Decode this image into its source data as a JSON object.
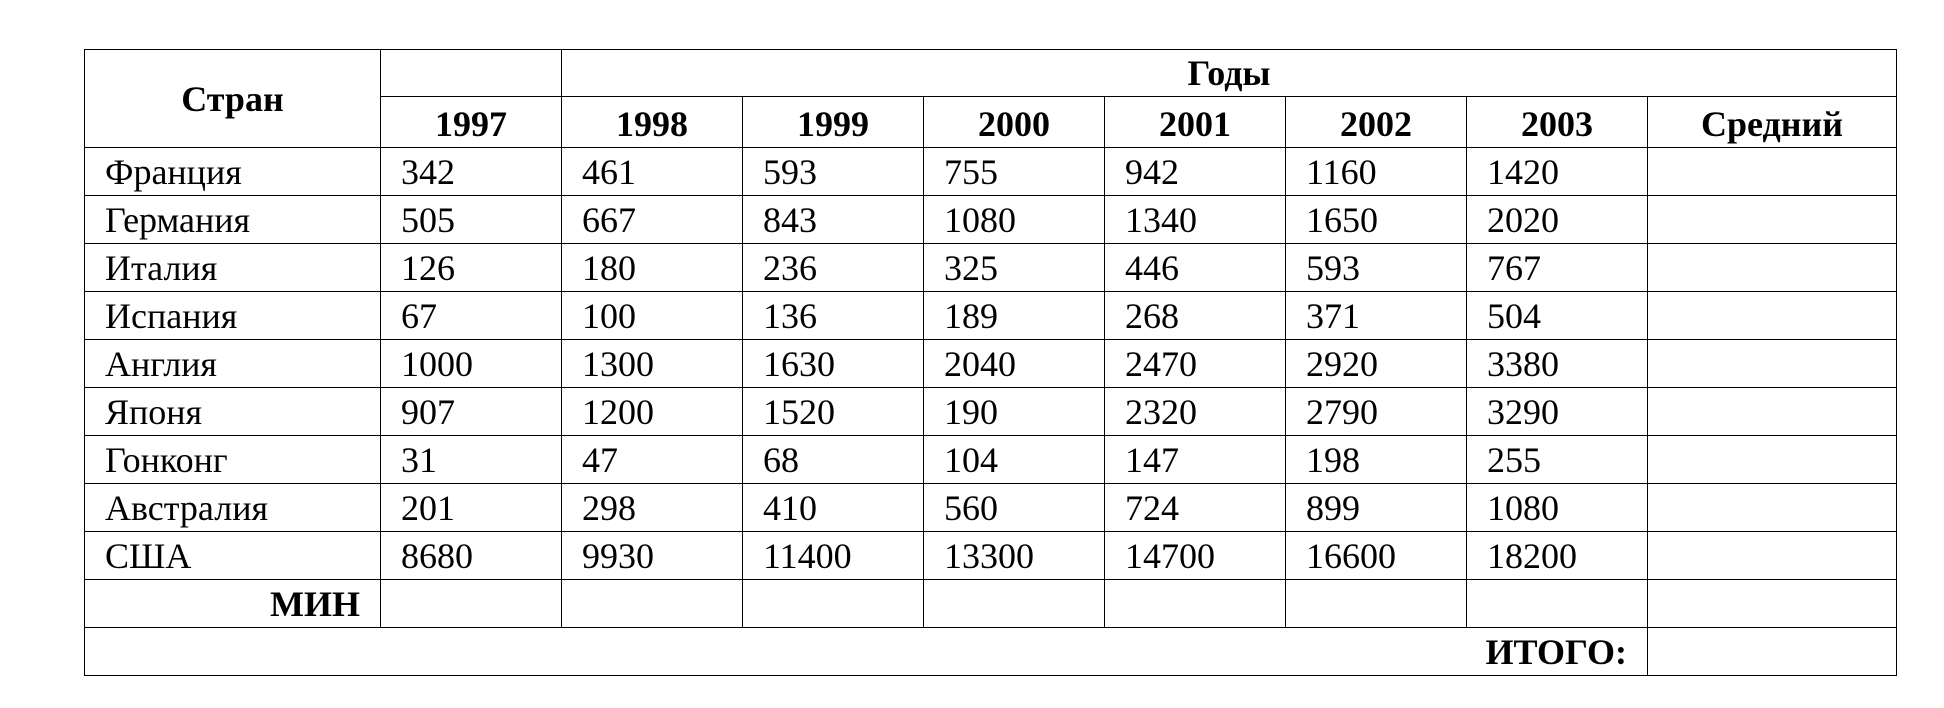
{
  "table": {
    "country_header": "Стран",
    "years_header": "Годы",
    "year_columns": [
      "1997",
      "1998",
      "1999",
      "2000",
      "2001",
      "2002",
      "2003"
    ],
    "average_header": "Средний",
    "rows": [
      {
        "country": "Франция",
        "values": [
          "342",
          "461",
          "593",
          "755",
          "942",
          "1160",
          "1420"
        ]
      },
      {
        "country": "Германия",
        "values": [
          "505",
          "667",
          "843",
          "1080",
          "1340",
          "1650",
          "2020"
        ]
      },
      {
        "country": "Италия",
        "values": [
          "126",
          "180",
          "236",
          "325",
          "446",
          "593",
          "767"
        ]
      },
      {
        "country": "Испания",
        "values": [
          "67",
          "100",
          "136",
          "189",
          "268",
          "371",
          "504"
        ]
      },
      {
        "country": "Англия",
        "values": [
          "1000",
          "1300",
          "1630",
          "2040",
          "2470",
          "2920",
          "3380"
        ]
      },
      {
        "country": "Японя",
        "values": [
          "907",
          "1200",
          "1520",
          "190",
          "2320",
          "2790",
          "3290"
        ]
      },
      {
        "country": "Гонконг",
        "values": [
          "31",
          "47",
          "68",
          "104",
          "147",
          "198",
          "255"
        ]
      },
      {
        "country": "Австралия",
        "values": [
          "201",
          "298",
          "410",
          "560",
          "724",
          "899",
          "1080"
        ]
      },
      {
        "country": "США",
        "values": [
          "8680",
          "9930",
          "11400",
          "13300",
          "14700",
          "16600",
          "18200"
        ]
      }
    ],
    "min_label": "МИН",
    "total_label": "ИТОГО:"
  }
}
